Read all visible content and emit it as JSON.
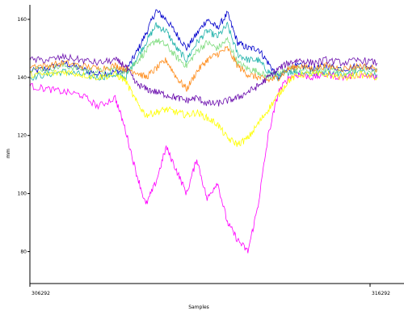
{
  "chart_data": {
    "type": "line",
    "xlabel": "Samples",
    "ylabel": "mm",
    "x_ticks": [
      "306292",
      "316292"
    ],
    "xlim": [
      306292,
      316292
    ],
    "ylim": [
      69,
      165
    ],
    "y_ticks": [
      80,
      100,
      120,
      140,
      160
    ],
    "grid": false,
    "legend": "none",
    "series": [
      {
        "color": "#0000cc",
        "x": [
          306292,
          306800,
          307300,
          307800,
          308300,
          308800,
          309100,
          309400,
          309700,
          310000,
          310300,
          310600,
          310900,
          311200,
          311500,
          311800,
          312100,
          312400,
          312700,
          313000,
          313300,
          313600,
          313900,
          314200,
          314600,
          315000,
          315500,
          316000,
          316500
        ],
        "values": [
          142,
          143,
          145,
          143,
          141,
          142,
          142,
          148,
          155,
          163,
          160,
          155,
          150,
          155,
          160,
          157,
          162,
          152,
          150,
          150,
          145,
          140,
          143,
          144,
          143,
          144,
          143,
          144,
          143
        ]
      },
      {
        "color": "#20b2aa",
        "x": [
          306292,
          306800,
          307300,
          307800,
          308300,
          308800,
          309100,
          309400,
          309700,
          310000,
          310300,
          310600,
          310900,
          311200,
          311500,
          311800,
          312100,
          312400,
          312700,
          313000,
          313300,
          313600,
          313900,
          314200,
          314600,
          315000,
          315500,
          316000,
          316500
        ],
        "values": [
          140,
          141,
          142,
          141,
          140,
          141,
          140,
          146,
          152,
          158,
          156,
          150,
          146,
          152,
          156,
          154,
          158,
          148,
          146,
          146,
          142,
          140,
          142,
          142,
          141,
          142,
          141,
          142,
          141
        ]
      },
      {
        "color": "#7fdc7f",
        "x": [
          306292,
          306800,
          307300,
          307800,
          308300,
          308800,
          309100,
          309400,
          309700,
          310000,
          310300,
          310600,
          310900,
          311200,
          311500,
          311800,
          312100,
          312400,
          312700,
          313000,
          313300,
          313600,
          313900,
          314200,
          314600,
          315000,
          315500,
          316000,
          316500
        ],
        "values": [
          143,
          143,
          144,
          143,
          142,
          143,
          142,
          145,
          149,
          153,
          151,
          147,
          144,
          149,
          152,
          150,
          153,
          145,
          143,
          142,
          140,
          141,
          143,
          143,
          142,
          143,
          142,
          143,
          142
        ]
      },
      {
        "color": "#ff8c1a",
        "x": [
          306292,
          306800,
          307300,
          307800,
          308300,
          308800,
          309100,
          309400,
          309700,
          310000,
          310300,
          310600,
          310900,
          311200,
          311500,
          311800,
          312100,
          312400,
          312700,
          313000,
          313300,
          313600,
          313900,
          314200,
          314600,
          315000,
          315500,
          316000,
          316500
        ],
        "values": [
          144,
          144,
          145,
          144,
          143,
          144,
          143,
          142,
          140,
          143,
          146,
          140,
          136,
          142,
          146,
          148,
          150,
          144,
          141,
          140,
          139,
          140,
          143,
          144,
          143,
          144,
          143,
          144,
          143
        ]
      },
      {
        "color": "#ff00ff",
        "x": [
          306292,
          306800,
          307300,
          307800,
          308300,
          308800,
          309100,
          309400,
          309700,
          310000,
          310300,
          310600,
          310900,
          311200,
          311500,
          311800,
          312100,
          312400,
          312700,
          313000,
          313300,
          313600,
          313900,
          314200,
          314600,
          315000,
          315500,
          316000,
          316500
        ],
        "values": [
          137,
          136,
          135,
          134,
          130,
          133,
          122,
          108,
          96,
          104,
          116,
          108,
          100,
          112,
          98,
          104,
          90,
          84,
          80,
          96,
          120,
          135,
          140,
          141,
          140,
          141,
          140,
          141,
          140
        ]
      },
      {
        "color": "#ffff00",
        "x": [
          306292,
          306800,
          307300,
          307800,
          308300,
          308800,
          309100,
          309400,
          309700,
          310000,
          310300,
          310600,
          310900,
          311200,
          311500,
          311800,
          312100,
          312400,
          312700,
          313000,
          313300,
          313600,
          313900,
          314200,
          314600,
          315000,
          315500,
          316000,
          316500
        ],
        "values": [
          141,
          141,
          142,
          141,
          140,
          141,
          139,
          132,
          127,
          128,
          129,
          128,
          127,
          128,
          126,
          124,
          119,
          117,
          119,
          124,
          129,
          134,
          139,
          141,
          141,
          141,
          140,
          141,
          140
        ]
      },
      {
        "color": "#6a0dad",
        "x": [
          306292,
          306800,
          307300,
          307800,
          308300,
          308800,
          309100,
          309400,
          309700,
          310000,
          310300,
          310600,
          310900,
          311200,
          311500,
          311800,
          312100,
          312400,
          312700,
          313000,
          313300,
          313600,
          313900,
          314200,
          314600,
          315000,
          315500,
          316000,
          316500
        ],
        "values": [
          146,
          146,
          147,
          146,
          145,
          146,
          144,
          138,
          136,
          135,
          134,
          133,
          132,
          133,
          131,
          131,
          132,
          133,
          135,
          137,
          140,
          143,
          145,
          146,
          145,
          146,
          145,
          146,
          145
        ]
      }
    ]
  }
}
